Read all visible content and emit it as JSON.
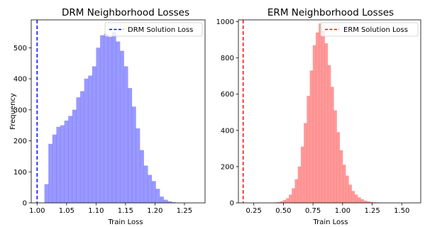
{
  "chart_data": [
    {
      "type": "bar",
      "title": "DRM Neighborhood Losses",
      "xlabel": "Train Loss",
      "ylabel": "Frequency",
      "xlim": [
        0.99,
        1.285
      ],
      "ylim": [
        0,
        590
      ],
      "xticks": [
        1.0,
        1.05,
        1.1,
        1.15,
        1.2,
        1.25
      ],
      "xtick_labels": [
        "1.00",
        "1.05",
        "1.10",
        "1.15",
        "1.20",
        "1.25"
      ],
      "yticks": [
        0,
        100,
        200,
        300,
        400,
        500
      ],
      "ytick_labels": [
        "0",
        "100",
        "200",
        "300",
        "400",
        "500"
      ],
      "bar_color": "#0000ff",
      "bar_alpha": 0.4,
      "bins": {
        "start": 1.0125,
        "width": 0.00675,
        "counts": [
          60,
          190,
          220,
          245,
          250,
          265,
          280,
          300,
          340,
          360,
          400,
          410,
          440,
          500,
          540,
          545,
          535,
          550,
          520,
          490,
          440,
          370,
          310,
          240,
          170,
          120,
          90,
          70,
          45,
          20,
          10,
          5,
          2
        ]
      },
      "vline": {
        "x": 1.0,
        "color": "#0000ff",
        "style": "dashed",
        "label": "DRM Solution Loss"
      },
      "legend": {
        "position": "upper-right",
        "entries": [
          "DRM Solution Loss"
        ]
      }
    },
    {
      "type": "bar",
      "title": "ERM Neighborhood Losses",
      "xlabel": "Train Loss",
      "ylabel": "",
      "xlim": [
        0.12,
        1.66
      ],
      "ylim": [
        0,
        1010
      ],
      "xticks": [
        0.25,
        0.5,
        0.75,
        1.0,
        1.25,
        1.5
      ],
      "xtick_labels": [
        "0.25",
        "0.50",
        "0.75",
        "1.00",
        "1.25",
        "1.50"
      ],
      "yticks": [
        0,
        200,
        400,
        600,
        800,
        1000
      ],
      "ytick_labels": [
        "0",
        "200",
        "400",
        "600",
        "800",
        "1000"
      ],
      "bar_color": "#ff0000",
      "bar_alpha": 0.4,
      "bins": {
        "start": 0.42,
        "width": 0.0253,
        "counts": [
          2,
          4,
          8,
          15,
          25,
          45,
          80,
          130,
          200,
          310,
          440,
          590,
          730,
          870,
          940,
          990,
          950,
          880,
          760,
          640,
          510,
          390,
          290,
          210,
          150,
          100,
          65,
          45,
          30,
          20,
          12,
          8,
          5,
          3,
          2,
          1
        ]
      },
      "vline": {
        "x": 0.16,
        "color": "#ff0000",
        "style": "dashed",
        "label": "ERM Solution Loss"
      },
      "legend": {
        "position": "upper-right",
        "entries": [
          "ERM Solution Loss"
        ]
      }
    }
  ]
}
